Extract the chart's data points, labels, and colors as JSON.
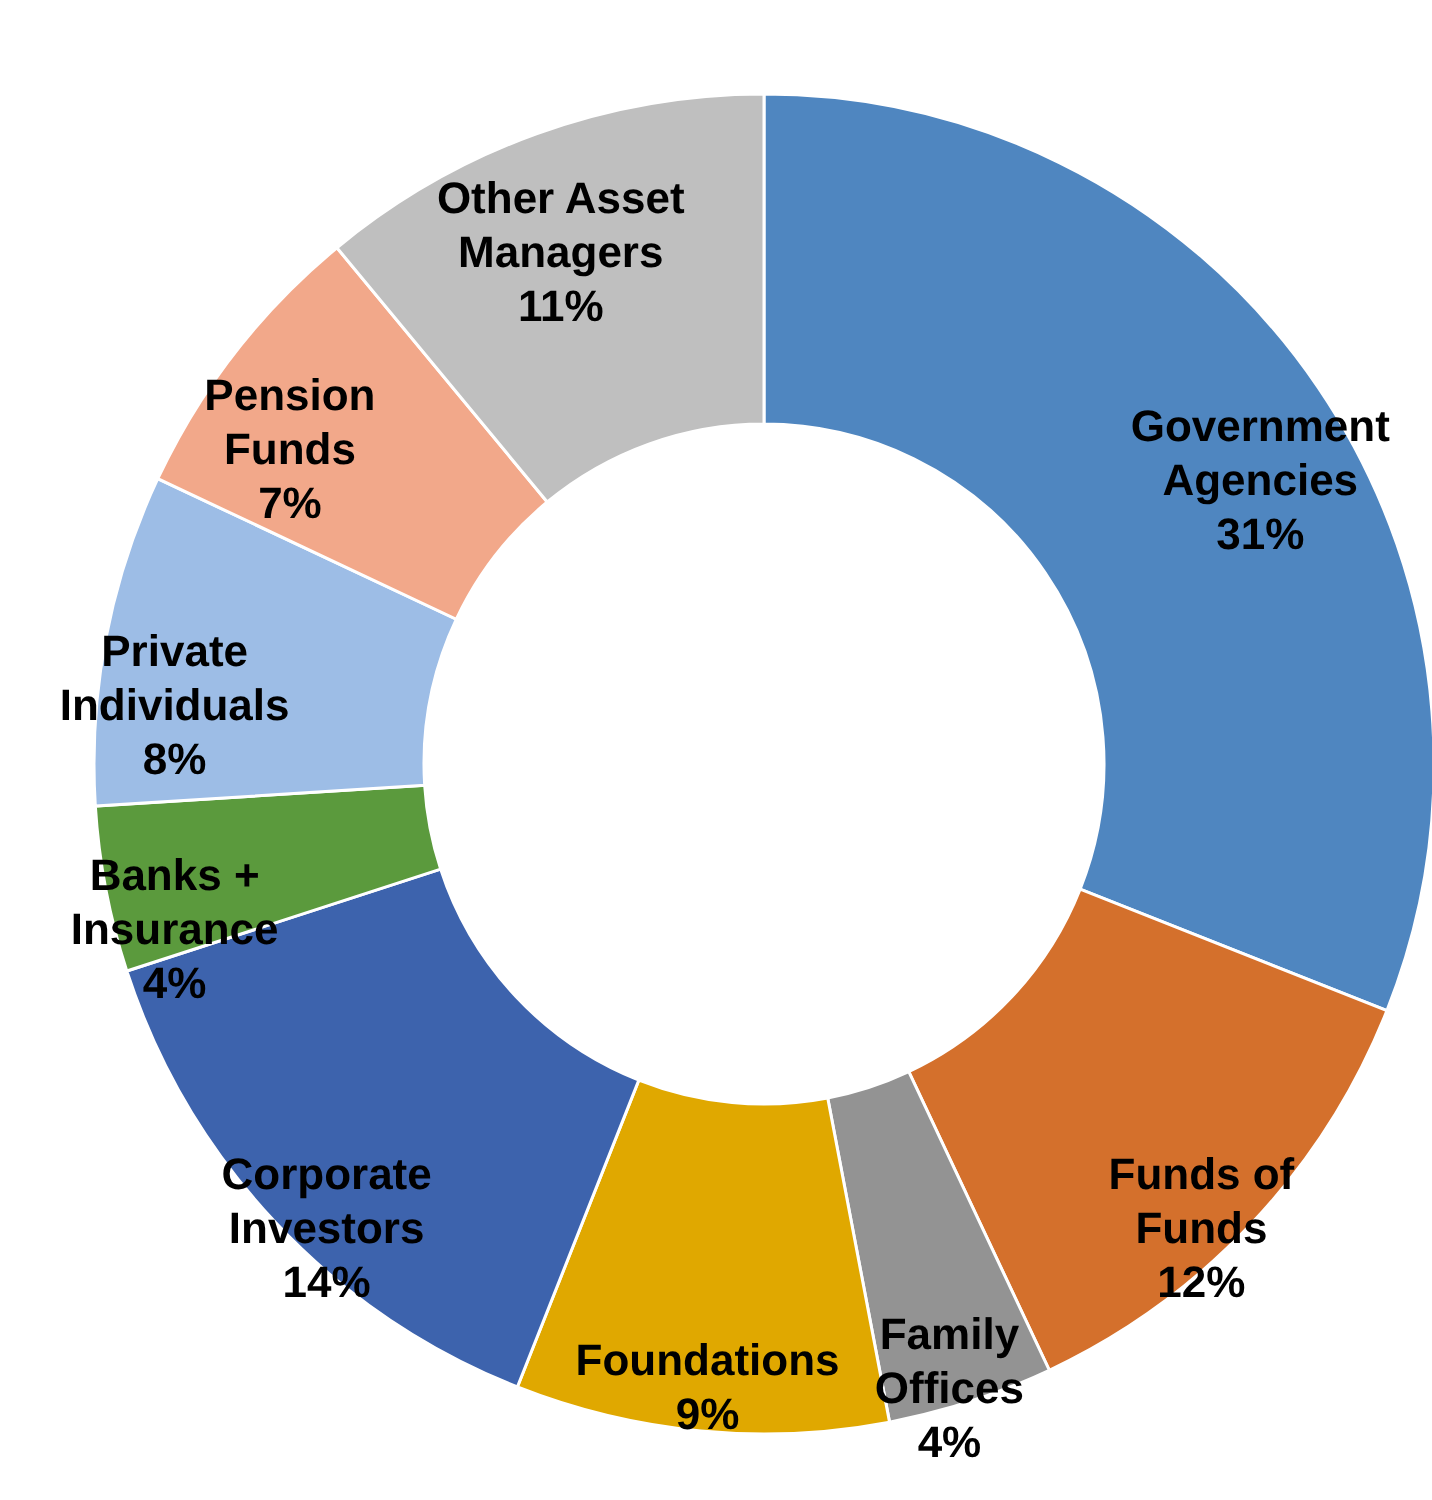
{
  "chart_data": {
    "type": "donut",
    "categories": [
      "Government\nAgencies",
      "Funds of\nFunds",
      "Family\nOffices",
      "Foundations",
      "Corporate\nInvestors",
      "Banks +\nInsurance",
      "Private\nIndividuals",
      "Pension\nFunds",
      "Other Asset\nManagers"
    ],
    "values": [
      31,
      12,
      4,
      9,
      14,
      4,
      8,
      7,
      11
    ],
    "value_labels": [
      "31%",
      "12%",
      "4%",
      "9%",
      "14%",
      "4%",
      "8%",
      "7%",
      "11%"
    ],
    "colors": [
      "#4f86c0",
      "#d4702c",
      "#939393",
      "#e0a800",
      "#3d63ad",
      "#5b9a3d",
      "#9dbde6",
      "#f2a88a",
      "#bfbfbf"
    ]
  }
}
